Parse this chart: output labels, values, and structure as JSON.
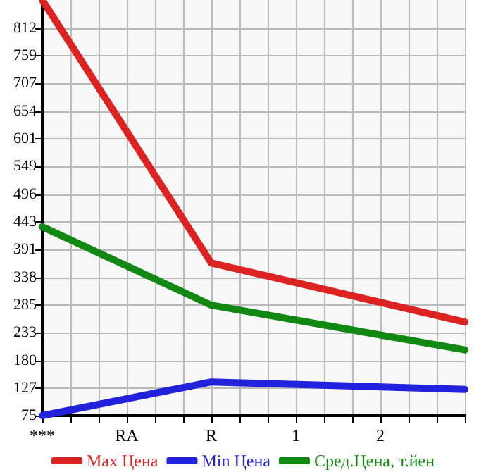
{
  "chart_data": {
    "type": "line",
    "categories": [
      "***",
      "RA",
      "R",
      "1",
      "2",
      null
    ],
    "series": [
      {
        "name": "Max Цена",
        "color": "#dd2222",
        "values": [
          865,
          null,
          365,
          null,
          null,
          253
        ]
      },
      {
        "name": "Min Цена",
        "color": "#2222dd",
        "values": [
          75,
          null,
          139,
          null,
          null,
          125
        ]
      },
      {
        "name": "Сред.Цена, т.йен",
        "color": "#118811",
        "values": [
          434,
          null,
          285,
          null,
          null,
          200
        ]
      }
    ],
    "ylim": [
      75,
      865
    ],
    "yticks": [
      75,
      127,
      180,
      233,
      285,
      338,
      391,
      443,
      496,
      549,
      601,
      654,
      707,
      759,
      812
    ],
    "grid": true,
    "legend": "bottom",
    "marker": "none",
    "line_style": "solid"
  }
}
